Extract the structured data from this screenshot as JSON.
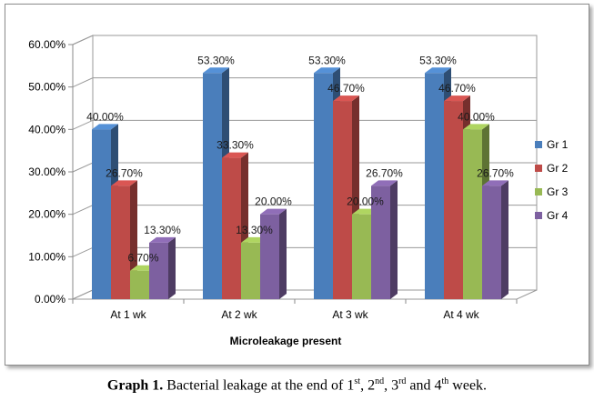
{
  "chart_data": {
    "type": "bar",
    "title": "",
    "xlabel": "Microleakage present",
    "ylabel": "",
    "categories": [
      "At 1 wk",
      "At 2 wk",
      "At 3 wk",
      "At 4 wk"
    ],
    "series": [
      {
        "name": "Gr 1",
        "color": "#4a7ebb",
        "values": [
          40.0,
          53.3,
          53.3,
          53.3
        ],
        "labels": [
          "40.00%",
          "53.30%",
          "53.30%",
          "53.30%"
        ]
      },
      {
        "name": "Gr 2",
        "color": "#be4b48",
        "values": [
          26.7,
          33.3,
          46.7,
          46.7
        ],
        "labels": [
          "26.70%",
          "33.30%",
          "46.70%",
          "46.70%"
        ]
      },
      {
        "name": "Gr 3",
        "color": "#98b954",
        "values": [
          6.7,
          13.3,
          20.0,
          40.0
        ],
        "labels": [
          "6.70%",
          "13.30%",
          "20.00%",
          "40.00%"
        ]
      },
      {
        "name": "Gr 4",
        "color": "#7d60a0",
        "values": [
          13.3,
          20.0,
          26.7,
          26.7
        ],
        "labels": [
          "13.30%",
          "20.00%",
          "26.70%",
          "26.70%"
        ]
      }
    ],
    "ylim": [
      0,
      60
    ],
    "yticks": [
      "0.00%",
      "10.00%",
      "20.00%",
      "30.00%",
      "40.00%",
      "50.00%",
      "60.00%"
    ],
    "grid": true,
    "legend": "right",
    "style": "3d-clustered-column"
  },
  "caption": {
    "label": "Graph 1.",
    "text_parts": [
      "Bacterial leakage at the end of 1",
      "st",
      ", 2",
      "nd",
      ", 3",
      "rd",
      " and 4",
      "th",
      " week."
    ]
  }
}
